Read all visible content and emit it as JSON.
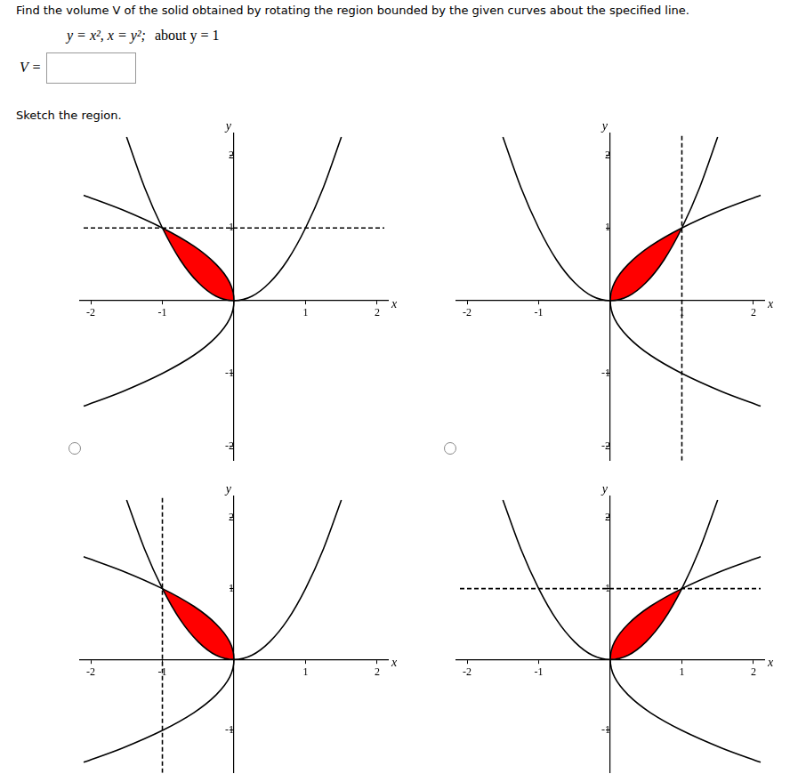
{
  "header": {
    "question": "Find the volume V of the solid obtained by rotating the region bounded by the given curves about the specified line.",
    "equation": "y = x², x = y²;",
    "rotation_axis": "about y = 1",
    "answer_label": "V =",
    "sketch_prompt": "Sketch the region."
  },
  "chart_data": [
    {
      "type": "line",
      "x_label": "x",
      "y_label": "y",
      "xlim": [
        -2.15,
        2.15
      ],
      "ylim": [
        -2.2,
        2.3
      ],
      "xticks": [
        -2,
        -1,
        1,
        2
      ],
      "yticks": [
        -2,
        -1,
        1,
        2
      ],
      "grid": false,
      "series": [
        {
          "type": "area",
          "color": "#ff0000",
          "x": [
            -1,
            -0.875,
            -0.75,
            -0.625,
            -0.5,
            -0.375,
            -0.25,
            -0.125,
            0,
            -0.02,
            -0.06,
            -0.14,
            -0.25,
            -0.39,
            -0.56,
            -0.77,
            -1
          ],
          "y": [
            1,
            0.77,
            0.56,
            0.39,
            0.25,
            0.14,
            0.06,
            0.02,
            0,
            0.125,
            0.25,
            0.375,
            0.5,
            0.625,
            0.75,
            0.875,
            1
          ]
        },
        {
          "color": "#000000",
          "line_style": "solid",
          "x": [
            -1.5,
            -1.25,
            -1,
            -0.75,
            -0.5,
            -0.25,
            0,
            0.25,
            0.5,
            0.75,
            1,
            1.25,
            1.5
          ],
          "y": [
            2.25,
            1.56,
            1,
            0.56,
            0.25,
            0.06,
            0,
            0.06,
            0.25,
            0.56,
            1,
            1.56,
            2.25
          ]
        },
        {
          "color": "#000000",
          "line_style": "solid",
          "x": [
            -2.1,
            -1.56,
            -1,
            -0.56,
            -0.25,
            -0.06,
            0,
            -0.06,
            -0.25,
            -0.56,
            -1,
            -1.56,
            -2.1
          ],
          "y": [
            -1.45,
            -1.25,
            -1,
            -0.75,
            -0.5,
            -0.25,
            0,
            0.25,
            0.5,
            0.75,
            1,
            1.25,
            1.45
          ]
        },
        {
          "color": "#000000",
          "line_style": "dashed",
          "x": [
            -2.1,
            2.1
          ],
          "y": [
            1,
            1
          ]
        }
      ]
    },
    {
      "type": "line",
      "x_label": "x",
      "y_label": "y",
      "xlim": [
        -2.15,
        2.15
      ],
      "ylim": [
        -2.2,
        2.3
      ],
      "xticks": [
        -2,
        -1,
        1,
        2
      ],
      "yticks": [
        -2,
        -1,
        1,
        2
      ],
      "grid": false,
      "series": [
        {
          "type": "area",
          "color": "#ff0000",
          "x": [
            1,
            0.875,
            0.75,
            0.625,
            0.5,
            0.375,
            0.25,
            0.125,
            0,
            0.02,
            0.06,
            0.14,
            0.25,
            0.39,
            0.56,
            0.77,
            1
          ],
          "y": [
            1,
            0.77,
            0.56,
            0.39,
            0.25,
            0.14,
            0.06,
            0.02,
            0,
            0.125,
            0.25,
            0.375,
            0.5,
            0.625,
            0.75,
            0.875,
            1
          ]
        },
        {
          "color": "#000000",
          "line_style": "solid",
          "x": [
            -1.5,
            -1.25,
            -1,
            -0.75,
            -0.5,
            -0.25,
            0,
            0.25,
            0.5,
            0.75,
            1,
            1.25,
            1.5
          ],
          "y": [
            2.25,
            1.56,
            1,
            0.56,
            0.25,
            0.06,
            0,
            0.06,
            0.25,
            0.56,
            1,
            1.56,
            2.25
          ]
        },
        {
          "color": "#000000",
          "line_style": "solid",
          "x": [
            2.1,
            1.56,
            1,
            0.56,
            0.25,
            0.06,
            0,
            0.06,
            0.25,
            0.56,
            1,
            1.56,
            2.1
          ],
          "y": [
            -1.45,
            -1.25,
            -1,
            -0.75,
            -0.5,
            -0.25,
            0,
            0.25,
            0.5,
            0.75,
            1,
            1.25,
            1.45
          ]
        },
        {
          "color": "#000000",
          "line_style": "dashed",
          "x": [
            1,
            1
          ],
          "y": [
            -2.2,
            2.3
          ]
        }
      ]
    },
    {
      "type": "line",
      "x_label": "x",
      "y_label": "y",
      "xlim": [
        -2.15,
        2.15
      ],
      "ylim": [
        -1.6,
        2.3
      ],
      "xticks": [
        -2,
        -1,
        1,
        2
      ],
      "yticks": [
        -1,
        1,
        2
      ],
      "grid": false,
      "series": [
        {
          "type": "area",
          "color": "#ff0000",
          "x": [
            -1,
            -0.875,
            -0.75,
            -0.625,
            -0.5,
            -0.375,
            -0.25,
            -0.125,
            0,
            -0.02,
            -0.06,
            -0.14,
            -0.25,
            -0.39,
            -0.56,
            -0.77,
            -1
          ],
          "y": [
            1,
            0.77,
            0.56,
            0.39,
            0.25,
            0.14,
            0.06,
            0.02,
            0,
            0.125,
            0.25,
            0.375,
            0.5,
            0.625,
            0.75,
            0.875,
            1
          ]
        },
        {
          "color": "#000000",
          "line_style": "solid",
          "x": [
            -1.5,
            -1.25,
            -1,
            -0.75,
            -0.5,
            -0.25,
            0,
            0.25,
            0.5,
            0.75,
            1,
            1.25,
            1.5
          ],
          "y": [
            2.25,
            1.56,
            1,
            0.56,
            0.25,
            0.06,
            0,
            0.06,
            0.25,
            0.56,
            1,
            1.56,
            2.25
          ]
        },
        {
          "color": "#000000",
          "line_style": "solid",
          "x": [
            -2.1,
            -1.56,
            -1,
            -0.56,
            -0.25,
            -0.06,
            0,
            -0.06,
            -0.25,
            -0.56,
            -1,
            -1.56,
            -2.1
          ],
          "y": [
            -1.45,
            -1.25,
            -1,
            -0.75,
            -0.5,
            -0.25,
            0,
            0.25,
            0.5,
            0.75,
            1,
            1.25,
            1.45
          ]
        },
        {
          "color": "#000000",
          "line_style": "dashed",
          "x": [
            -1,
            -1
          ],
          "y": [
            -1.6,
            2.3
          ]
        }
      ]
    },
    {
      "type": "line",
      "x_label": "x",
      "y_label": "y",
      "xlim": [
        -2.15,
        2.15
      ],
      "ylim": [
        -1.6,
        2.3
      ],
      "xticks": [
        -2,
        -1,
        1,
        2
      ],
      "yticks": [
        -1,
        1,
        2
      ],
      "grid": false,
      "series": [
        {
          "type": "area",
          "color": "#ff0000",
          "x": [
            1,
            0.875,
            0.75,
            0.625,
            0.5,
            0.375,
            0.25,
            0.125,
            0,
            0.02,
            0.06,
            0.14,
            0.25,
            0.39,
            0.56,
            0.77,
            1
          ],
          "y": [
            1,
            0.77,
            0.56,
            0.39,
            0.25,
            0.14,
            0.06,
            0.02,
            0,
            0.125,
            0.25,
            0.375,
            0.5,
            0.625,
            0.75,
            0.875,
            1
          ]
        },
        {
          "color": "#000000",
          "line_style": "solid",
          "x": [
            -1.5,
            -1.25,
            -1,
            -0.75,
            -0.5,
            -0.25,
            0,
            0.25,
            0.5,
            0.75,
            1,
            1.25,
            1.5
          ],
          "y": [
            2.25,
            1.56,
            1,
            0.56,
            0.25,
            0.06,
            0,
            0.06,
            0.25,
            0.56,
            1,
            1.56,
            2.25
          ]
        },
        {
          "color": "#000000",
          "line_style": "solid",
          "x": [
            2.1,
            1.56,
            1,
            0.56,
            0.25,
            0.06,
            0,
            0.06,
            0.25,
            0.56,
            1,
            1.56,
            2.1
          ],
          "y": [
            -1.45,
            -1.25,
            -1,
            -0.75,
            -0.5,
            -0.25,
            0,
            0.25,
            0.5,
            0.75,
            1,
            1.25,
            1.45
          ]
        },
        {
          "color": "#000000",
          "line_style": "dashed",
          "x": [
            -2.1,
            2.1
          ],
          "y": [
            1,
            1
          ]
        }
      ]
    }
  ]
}
